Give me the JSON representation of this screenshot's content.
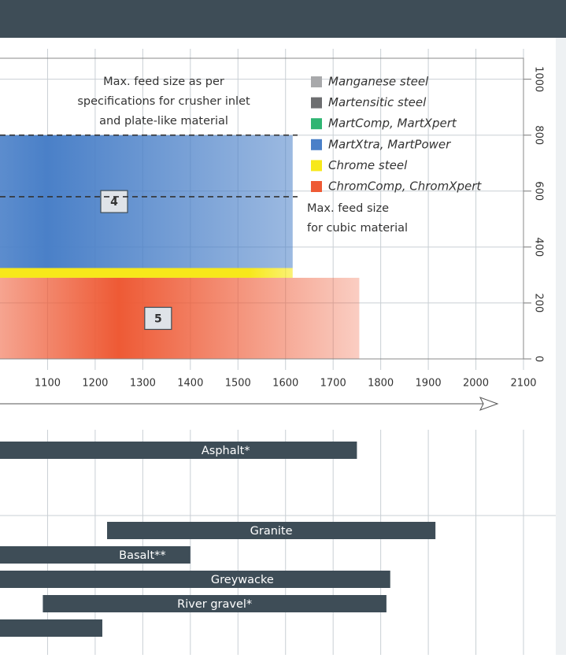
{
  "chart_data": {
    "type": "range-bar",
    "xlim": [
      1000,
      2100
    ],
    "xticks": [
      1100,
      1200,
      1300,
      1400,
      1500,
      1600,
      1700,
      1800,
      1900,
      2000,
      2100
    ],
    "ylim": [
      0,
      1075
    ],
    "yticks": [
      0,
      200,
      400,
      600,
      800,
      1000
    ],
    "grid": true,
    "legend": [
      {
        "name": "Manganese steel",
        "color": "#a8a9ab"
      },
      {
        "name": "Martensitic steel",
        "color": "#6d6e70"
      },
      {
        "name": "MartComp, MartXpert",
        "color": "#2fb573"
      },
      {
        "name": "MartXtra, MartPower",
        "color": "#4a80c8"
      },
      {
        "name": "Chrome steel",
        "color": "#f7e81a"
      },
      {
        "name": "ChromComp, ChromXpert",
        "color": "#ee5a35"
      }
    ],
    "bands": [
      {
        "label": "4",
        "color": "#4a80c8",
        "y": [
          325,
          800
        ],
        "x_end": 1615
      },
      {
        "label": null,
        "color": "#f7e81a",
        "y": [
          290,
          325
        ],
        "x_end": 1615
      },
      {
        "label": "5",
        "color": "#ee5a35",
        "y": [
          0,
          290
        ],
        "x_end": 1755
      }
    ],
    "feed_limits": [
      {
        "value": 800,
        "label": [
          "Max. feed size as per",
          "specifications for crusher inlet",
          "and plate-like material"
        ]
      },
      {
        "value": 580,
        "label": [
          "Max. feed size",
          "for cubic material"
        ]
      }
    ],
    "rocks": {
      "color": "#3e4d57",
      "names": [
        "Asphalt*",
        "Granite",
        "Basalt**",
        "Greywacke",
        "River gravel*",
        null
      ],
      "starts": [
        null,
        1225,
        null,
        null,
        1090,
        null
      ],
      "ends": [
        1750,
        1915,
        1400,
        1820,
        1812,
        1215
      ]
    }
  }
}
